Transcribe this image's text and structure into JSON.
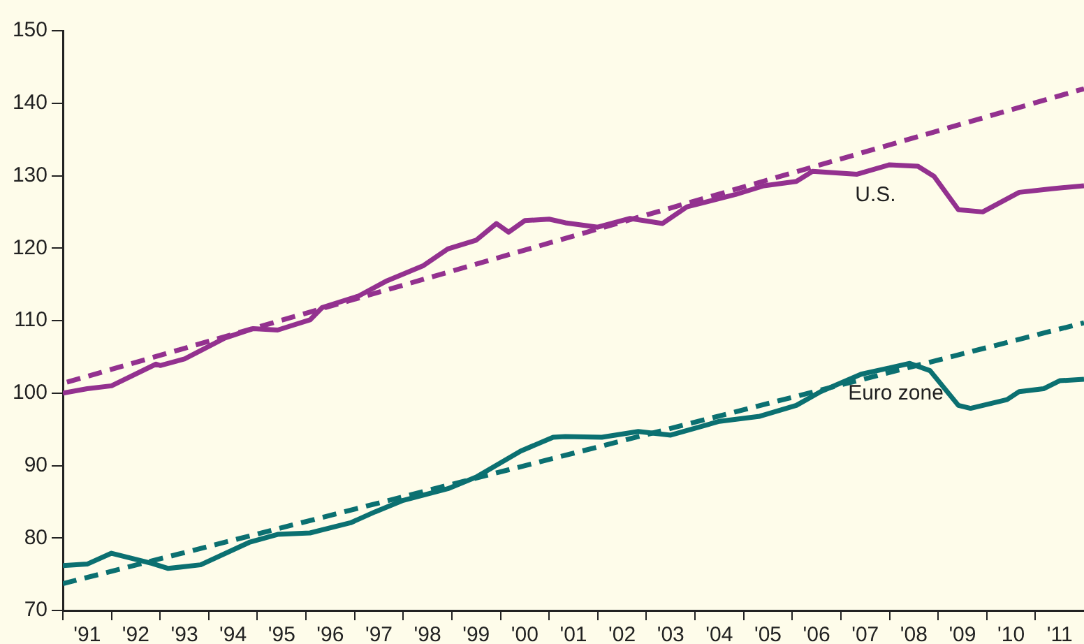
{
  "chart_data": {
    "type": "line",
    "xlim": [
      "1991-01",
      "2012-01"
    ],
    "ylim": [
      70,
      150
    ],
    "yticks": [
      70,
      80,
      90,
      100,
      110,
      120,
      130,
      140,
      150
    ],
    "xticks": [
      {
        "value": "1991-01",
        "label": null
      },
      {
        "value": "1991-07",
        "label": "'91"
      },
      {
        "value": "1992-01",
        "label": null
      },
      {
        "value": "1992-07",
        "label": "'92"
      },
      {
        "value": "1993-01",
        "label": null
      },
      {
        "value": "1993-07",
        "label": "'93"
      },
      {
        "value": "1994-01",
        "label": null
      },
      {
        "value": "1994-07",
        "label": "'94"
      },
      {
        "value": "1995-01",
        "label": null
      },
      {
        "value": "1995-07",
        "label": "'95"
      },
      {
        "value": "1996-01",
        "label": null
      },
      {
        "value": "1996-07",
        "label": "'96"
      },
      {
        "value": "1997-01",
        "label": null
      },
      {
        "value": "1997-07",
        "label": "'97"
      },
      {
        "value": "1998-01",
        "label": null
      },
      {
        "value": "1998-07",
        "label": "'98"
      },
      {
        "value": "1999-01",
        "label": null
      },
      {
        "value": "1999-07",
        "label": "'99"
      },
      {
        "value": "2000-01",
        "label": null
      },
      {
        "value": "2000-07",
        "label": "'00"
      },
      {
        "value": "2001-01",
        "label": null
      },
      {
        "value": "2001-07",
        "label": "'01"
      },
      {
        "value": "2002-01",
        "label": null
      },
      {
        "value": "2002-07",
        "label": "'02"
      },
      {
        "value": "2003-01",
        "label": null
      },
      {
        "value": "2003-07",
        "label": "'03"
      },
      {
        "value": "2004-01",
        "label": null
      },
      {
        "value": "2004-07",
        "label": "'04"
      },
      {
        "value": "2005-01",
        "label": null
      },
      {
        "value": "2005-07",
        "label": "'05"
      },
      {
        "value": "2006-01",
        "label": null
      },
      {
        "value": "2006-07",
        "label": "'06"
      },
      {
        "value": "2007-01",
        "label": null
      },
      {
        "value": "2007-07",
        "label": "'07"
      },
      {
        "value": "2008-01",
        "label": null
      },
      {
        "value": "2008-07",
        "label": "'08"
      },
      {
        "value": "2009-01",
        "label": null
      },
      {
        "value": "2009-07",
        "label": "'09"
      },
      {
        "value": "2010-01",
        "label": null
      },
      {
        "value": "2010-07",
        "label": "'10"
      },
      {
        "value": "2011-01",
        "label": null
      },
      {
        "value": "2011-07",
        "label": "'11"
      }
    ],
    "grid": false,
    "legend": false,
    "marker": "none",
    "series": [
      {
        "name": "U.S.",
        "color": "#93318f",
        "line_style": "solid",
        "x": [
          "1991-01",
          "1991-07",
          "1992-01",
          "1992-12",
          "1993-01",
          "1993-07",
          "1994-05",
          "1994-12",
          "1995-06",
          "1996-02",
          "1996-05",
          "1997-02",
          "1997-09",
          "1998-06",
          "1998-12",
          "1999-07",
          "1999-12",
          "2000-03",
          "2000-07",
          "2001-01",
          "2001-05",
          "2002-01",
          "2002-09",
          "2003-05",
          "2003-11",
          "2004-11",
          "2005-06",
          "2006-02",
          "2006-06",
          "2007-05",
          "2008-01",
          "2008-08",
          "2008-12",
          "2009-06",
          "2009-12",
          "2010-09",
          "2011-05",
          "2012-01"
        ],
        "values": [
          100,
          100.6,
          101,
          104,
          103.8,
          104.7,
          107.6,
          108.9,
          108.7,
          110.1,
          111.8,
          113.4,
          115.5,
          117.6,
          119.9,
          121.1,
          123.4,
          122.2,
          123.8,
          124,
          123.5,
          122.9,
          124.1,
          123.4,
          125.7,
          127.4,
          128.6,
          129.2,
          130.6,
          130.2,
          131.5,
          131.3,
          129.9,
          125.3,
          125,
          127.7,
          128.2,
          128.6
        ]
      },
      {
        "name": "Euro zone",
        "color": "#0b7071",
        "line_style": "solid",
        "x": [
          "1991-01",
          "1991-07",
          "1992-01",
          "1992-11",
          "1993-03",
          "1993-11",
          "1994-11",
          "1995-06",
          "1996-02",
          "1996-12",
          "1997-06",
          "1998-01",
          "1998-12",
          "1999-07",
          "2000-06",
          "2001-02",
          "2001-05",
          "2002-02",
          "2002-11",
          "2003-07",
          "2004-07",
          "2005-05",
          "2006-02",
          "2006-08",
          "2007-06",
          "2008-06",
          "2008-11",
          "2009-06",
          "2009-09",
          "2010-06",
          "2010-09",
          "2011-03",
          "2011-07",
          "2012-01"
        ],
        "values": [
          76.2,
          76.4,
          77.9,
          76.5,
          75.8,
          76.3,
          79.4,
          80.5,
          80.7,
          82.1,
          83.6,
          85.2,
          86.8,
          88.4,
          92,
          93.9,
          94,
          93.9,
          94.7,
          94.2,
          96.1,
          96.8,
          98.3,
          100.2,
          102.6,
          104.1,
          103.1,
          98.3,
          97.9,
          99.1,
          100.2,
          100.6,
          101.7,
          101.9
        ]
      },
      {
        "type": "line",
        "color": "#93318f",
        "line_style": "dashed",
        "x": [
          "1991-02",
          "2012-01"
        ],
        "values": [
          101.5,
          142
        ]
      },
      {
        "type": "line",
        "color": "#0b7071",
        "line_style": "dashed",
        "x": [
          "1991-01",
          "2012-01"
        ],
        "values": [
          73.7,
          109.7
        ]
      }
    ]
  }
}
